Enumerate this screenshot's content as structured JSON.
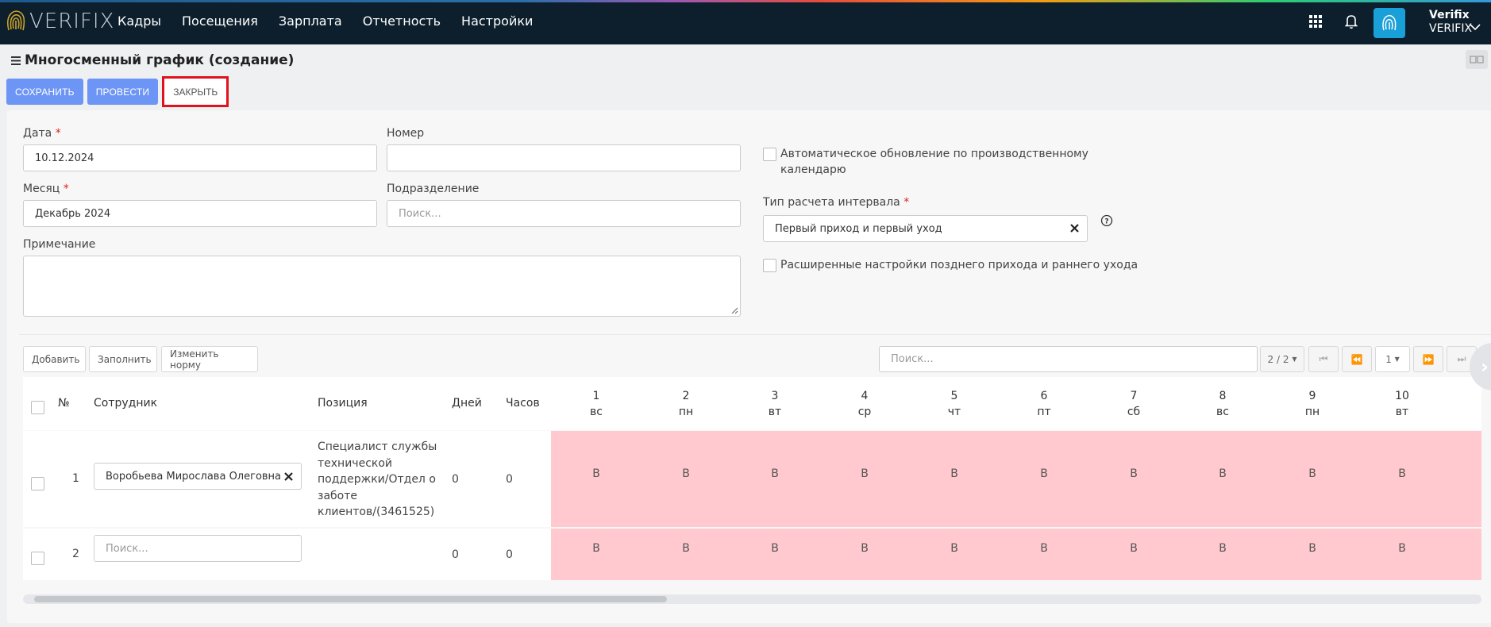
{
  "app": {
    "logo_text": "VERIFIX",
    "accent": "#1aa0d8",
    "nav_bg": "#0d1f2d"
  },
  "nav": {
    "items": [
      {
        "label": "Кадры"
      },
      {
        "label": "Посещения"
      },
      {
        "label": "Зарплата"
      },
      {
        "label": "Отчетность"
      },
      {
        "label": "Настройки"
      }
    ]
  },
  "user": {
    "name": "Verifix",
    "org": "VERIFIX"
  },
  "page": {
    "title": "Многосменный график (создание)"
  },
  "toolbar": {
    "save": "СОХРАНИТЬ",
    "post": "ПРОВЕСТИ",
    "close": "ЗАКРЫТЬ"
  },
  "form": {
    "date_label": "Дата",
    "date_value": "10.12.2024",
    "number_label": "Номер",
    "number_value": "",
    "month_label": "Месяц",
    "month_value": "Декабрь 2024",
    "division_label": "Подразделение",
    "division_placeholder": "Поиск...",
    "note_label": "Примечание",
    "note_value": "",
    "auto_update_line1": "Автоматическое обновление по производственному",
    "auto_update_line2": "календарю",
    "interval_label": "Тип расчета интервала",
    "interval_value": "Первый приход и первый уход",
    "advanced_label": "Расширенные настройки позднего прихода и раннего ухода"
  },
  "table_toolbar": {
    "add": "Добавить",
    "fill": "Заполнить",
    "change_norm": "Изменить норму",
    "search_placeholder": "Поиск...",
    "page_info": "2 / 2",
    "page_num": "1"
  },
  "table": {
    "headers": {
      "no": "№",
      "employee": "Сотрудник",
      "position": "Позиция",
      "days": "Дней",
      "hours": "Часов"
    },
    "days": [
      {
        "num": "1",
        "dow": "вс"
      },
      {
        "num": "2",
        "dow": "пн"
      },
      {
        "num": "3",
        "dow": "вт"
      },
      {
        "num": "4",
        "dow": "ср"
      },
      {
        "num": "5",
        "dow": "чт"
      },
      {
        "num": "6",
        "dow": "пт"
      },
      {
        "num": "7",
        "dow": "сб"
      },
      {
        "num": "8",
        "dow": "вс"
      },
      {
        "num": "9",
        "dow": "пн"
      },
      {
        "num": "10",
        "dow": "вт"
      }
    ],
    "rows": [
      {
        "no": "1",
        "employee": "Воробьева Мирослава Олеговна",
        "position_lines": [
          "Специалист службы",
          "технической",
          "поддержки/Отдел о",
          "заботе",
          "клиентов/(3461525)"
        ],
        "days": "0",
        "hours": "0",
        "cells": [
          "В",
          "В",
          "В",
          "В",
          "В",
          "В",
          "В",
          "В",
          "В",
          "В"
        ]
      },
      {
        "no": "2",
        "employee_placeholder": "Поиск...",
        "days": "0",
        "hours": "0",
        "cells": [
          "В",
          "В",
          "В",
          "В",
          "В",
          "В",
          "В",
          "В",
          "В",
          "В"
        ]
      }
    ]
  }
}
